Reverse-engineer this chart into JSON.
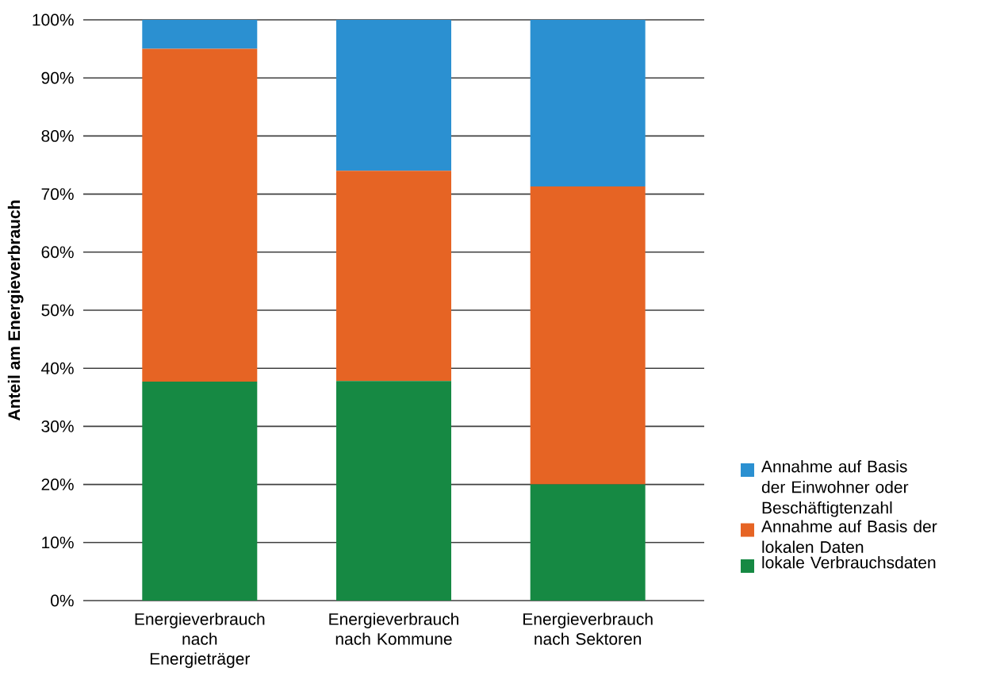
{
  "chart_data": {
    "type": "bar",
    "stacked": true,
    "ylabel": "Anteil am Energieverbrauch",
    "categories": [
      "Energieverbrauch nach Energieträger",
      "Energieverbrauch nach Kommune",
      "Energieverbrauch nach Sektoren"
    ],
    "series": [
      {
        "name": "lokale Verbrauchsdaten",
        "color": "#168943",
        "values": [
          37.7,
          37.8,
          20
        ]
      },
      {
        "name": "Annahme auf Basis der lokalen Daten",
        "color": "#e66424",
        "values": [
          57.3,
          36.2,
          51.3
        ]
      },
      {
        "name": "Annahme auf Basis der Einwohner oder Beschäftigtenzahl",
        "color": "#2b90d1",
        "values": [
          5,
          26,
          28.7
        ]
      }
    ],
    "ylim": [
      0,
      100
    ],
    "yticks": [
      {
        "value": 0,
        "label": "0%"
      },
      {
        "value": 10,
        "label": "10%"
      },
      {
        "value": 20,
        "label": "20%"
      },
      {
        "value": 30,
        "label": "30%"
      },
      {
        "value": 40,
        "label": "40%"
      },
      {
        "value": 50,
        "label": "50%"
      },
      {
        "value": 60,
        "label": "60%"
      },
      {
        "value": 70,
        "label": "70%"
      },
      {
        "value": 80,
        "label": "80%"
      },
      {
        "value": 90,
        "label": "90%"
      },
      {
        "value": 100,
        "label": "100%"
      }
    ],
    "grid": "y",
    "legend": "right"
  }
}
